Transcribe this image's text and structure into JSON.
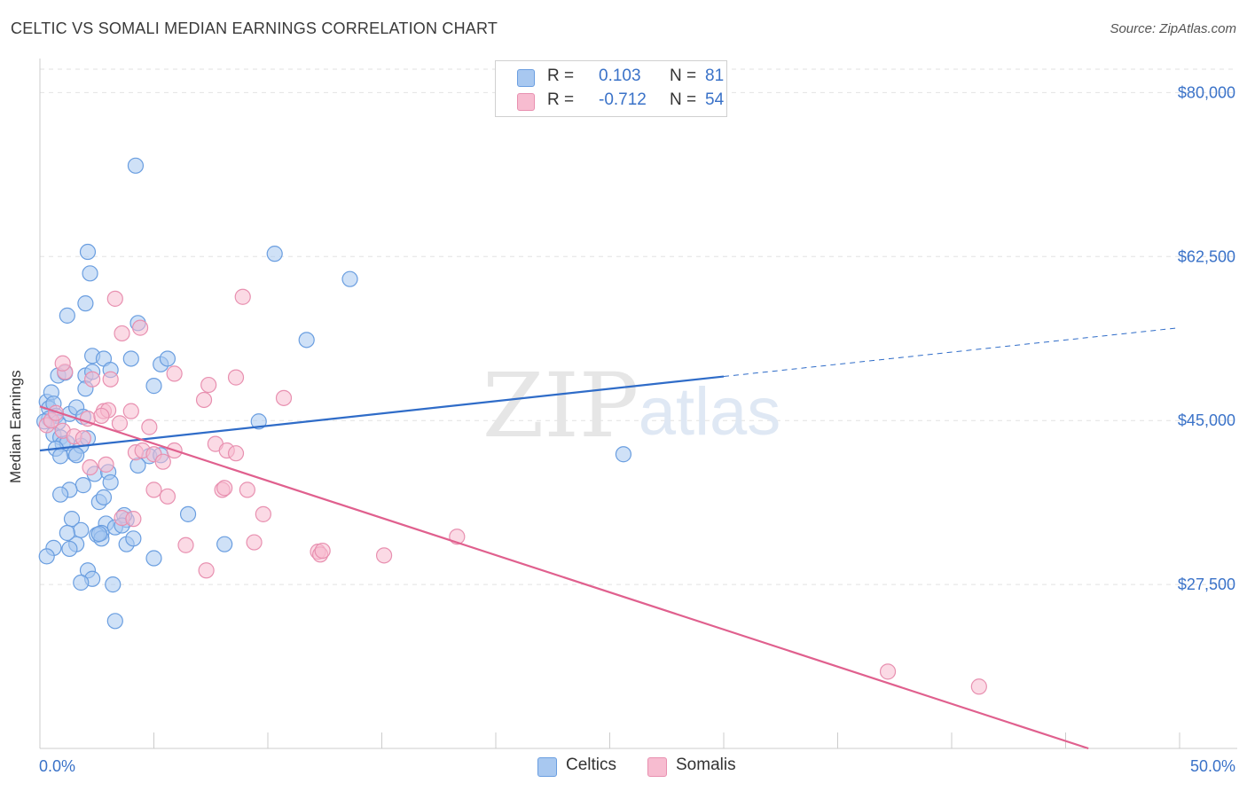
{
  "title": "CELTIC VS SOMALI MEDIAN EARNINGS CORRELATION CHART",
  "source": "Source: ZipAtlas.com",
  "watermark": {
    "zip": "ZIP",
    "atlas": "atlas"
  },
  "legend": {
    "rows": [
      {
        "r_label": "R =",
        "r_value": "0.103",
        "n_label": "N =",
        "n_value": "81",
        "color": "#a8c8f0",
        "border": "#6a9ee0"
      },
      {
        "r_label": "R =",
        "r_value": "-0.712",
        "n_label": "N =",
        "n_value": "54",
        "color": "#f7bcd0",
        "border": "#e890b0"
      }
    ]
  },
  "bottom_legend": {
    "celtics": "Celtics",
    "somalis": "Somalis"
  },
  "chart_data": {
    "type": "scatter",
    "title": "CELTIC VS SOMALI MEDIAN EARNINGS CORRELATION CHART",
    "xlabel": "",
    "ylabel": "Median Earnings",
    "xlim": [
      0,
      50
    ],
    "ylim": [
      10000,
      82500
    ],
    "x_tick_labels": {
      "left": "0.0%",
      "right": "50.0%"
    },
    "y_ticks": [
      {
        "value": 80000,
        "label": "$80,000"
      },
      {
        "value": 62500,
        "label": "$62,500"
      },
      {
        "value": 45000,
        "label": "$45,000"
      },
      {
        "value": 27500,
        "label": "$27,500"
      }
    ],
    "series": [
      {
        "name": "Celtics",
        "color": "#6a9ee0",
        "fill": "#a8c8f0",
        "trend": {
          "x0": 0,
          "y0": 41800,
          "x1": 30,
          "y1": 49700,
          "dashed_to_x": 50,
          "dashed_to_y": 54900
        },
        "points": [
          [
            0.3,
            47000
          ],
          [
            0.4,
            46300
          ],
          [
            0.5,
            48000
          ],
          [
            0.6,
            46800
          ],
          [
            0.7,
            45500
          ],
          [
            0.4,
            45200
          ],
          [
            0.8,
            44800
          ],
          [
            0.6,
            43500
          ],
          [
            0.9,
            43200
          ],
          [
            1.0,
            42500
          ],
          [
            1.2,
            42600
          ],
          [
            0.7,
            42000
          ],
          [
            1.5,
            41500
          ],
          [
            0.9,
            41200
          ],
          [
            1.8,
            42300
          ],
          [
            2.1,
            43100
          ],
          [
            1.3,
            45700
          ],
          [
            1.6,
            46400
          ],
          [
            1.9,
            45400
          ],
          [
            0.8,
            49800
          ],
          [
            1.1,
            50100
          ],
          [
            2.0,
            49800
          ],
          [
            2.0,
            48400
          ],
          [
            2.3,
            50200
          ],
          [
            2.3,
            51900
          ],
          [
            2.8,
            51600
          ],
          [
            3.1,
            50400
          ],
          [
            4.0,
            51600
          ],
          [
            5.3,
            51000
          ],
          [
            5.6,
            51600
          ],
          [
            5.0,
            48700
          ],
          [
            1.2,
            56200
          ],
          [
            2.0,
            57500
          ],
          [
            2.1,
            63000
          ],
          [
            2.2,
            60700
          ],
          [
            4.3,
            55400
          ],
          [
            4.2,
            72200
          ],
          [
            10.3,
            62800
          ],
          [
            13.6,
            60100
          ],
          [
            11.7,
            53600
          ],
          [
            9.6,
            44900
          ],
          [
            25.6,
            41400
          ],
          [
            4.8,
            41200
          ],
          [
            5.3,
            41300
          ],
          [
            4.3,
            40200
          ],
          [
            1.6,
            41300
          ],
          [
            2.4,
            39300
          ],
          [
            3.0,
            39500
          ],
          [
            3.1,
            38400
          ],
          [
            1.9,
            38100
          ],
          [
            1.3,
            37600
          ],
          [
            0.9,
            37100
          ],
          [
            2.6,
            36300
          ],
          [
            2.8,
            36800
          ],
          [
            1.4,
            34500
          ],
          [
            3.8,
            34400
          ],
          [
            3.7,
            34900
          ],
          [
            6.5,
            35000
          ],
          [
            2.9,
            34000
          ],
          [
            3.3,
            33600
          ],
          [
            1.8,
            33300
          ],
          [
            2.7,
            33000
          ],
          [
            2.5,
            32800
          ],
          [
            2.7,
            32400
          ],
          [
            3.8,
            31800
          ],
          [
            1.6,
            31800
          ],
          [
            1.3,
            31300
          ],
          [
            1.2,
            33000
          ],
          [
            4.1,
            32400
          ],
          [
            8.1,
            31800
          ],
          [
            5.0,
            30300
          ],
          [
            2.1,
            29000
          ],
          [
            2.3,
            28100
          ],
          [
            3.2,
            27500
          ],
          [
            3.3,
            23600
          ],
          [
            1.8,
            27700
          ],
          [
            0.6,
            31400
          ],
          [
            0.3,
            30500
          ],
          [
            3.6,
            33800
          ],
          [
            2.6,
            32900
          ],
          [
            0.2,
            44900
          ]
        ]
      },
      {
        "name": "Somalis",
        "color": "#e890b0",
        "fill": "#f7bcd0",
        "trend": {
          "x0": 0,
          "y0": 46500,
          "x1": 46,
          "y1": 10000
        },
        "points": [
          [
            0.3,
            44500
          ],
          [
            0.5,
            45000
          ],
          [
            0.7,
            45800
          ],
          [
            1.0,
            43900
          ],
          [
            1.1,
            50200
          ],
          [
            1.0,
            51100
          ],
          [
            1.5,
            43300
          ],
          [
            1.9,
            43100
          ],
          [
            2.1,
            45200
          ],
          [
            2.3,
            49400
          ],
          [
            2.8,
            46000
          ],
          [
            3.0,
            46100
          ],
          [
            3.1,
            49400
          ],
          [
            3.5,
            44700
          ],
          [
            4.0,
            46000
          ],
          [
            4.2,
            41600
          ],
          [
            4.8,
            44300
          ],
          [
            4.5,
            41800
          ],
          [
            4.4,
            54900
          ],
          [
            5.0,
            41400
          ],
          [
            5.4,
            40600
          ],
          [
            5.9,
            50000
          ],
          [
            5.9,
            41800
          ],
          [
            3.3,
            58000
          ],
          [
            3.6,
            54300
          ],
          [
            2.9,
            40300
          ],
          [
            2.2,
            40000
          ],
          [
            3.6,
            34600
          ],
          [
            4.1,
            34500
          ],
          [
            5.0,
            37600
          ],
          [
            5.6,
            36900
          ],
          [
            6.4,
            31700
          ],
          [
            7.2,
            47200
          ],
          [
            7.4,
            48800
          ],
          [
            7.7,
            42500
          ],
          [
            8.0,
            37600
          ],
          [
            8.2,
            41800
          ],
          [
            8.6,
            49600
          ],
          [
            8.6,
            41500
          ],
          [
            8.9,
            58200
          ],
          [
            9.1,
            37600
          ],
          [
            9.4,
            32000
          ],
          [
            9.8,
            35000
          ],
          [
            10.7,
            47400
          ],
          [
            12.2,
            31000
          ],
          [
            12.3,
            30700
          ],
          [
            12.4,
            31100
          ],
          [
            15.1,
            30600
          ],
          [
            18.3,
            32600
          ],
          [
            7.3,
            29000
          ],
          [
            8.1,
            37800
          ],
          [
            37.2,
            18200
          ],
          [
            41.2,
            16600
          ],
          [
            2.7,
            45500
          ]
        ]
      }
    ]
  }
}
